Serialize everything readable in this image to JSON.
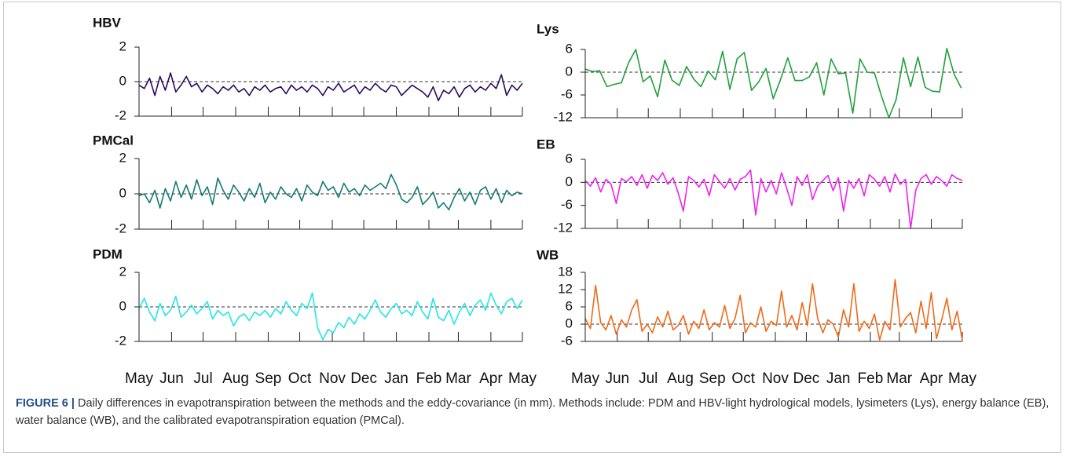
{
  "chart_data": [
    {
      "type": "line",
      "title": "HBV",
      "color": "#2e0a5e",
      "xlim": [
        0,
        365
      ],
      "ylim": [
        -2,
        2
      ],
      "yticks": [
        -2,
        0,
        2
      ],
      "hline": 0,
      "xticks": [
        0,
        31,
        61,
        92,
        123,
        153,
        184,
        214,
        245,
        276,
        304,
        335,
        365
      ],
      "x": [
        0,
        5,
        10,
        15,
        20,
        25,
        30,
        35,
        40,
        45,
        50,
        55,
        60,
        65,
        70,
        75,
        80,
        85,
        90,
        95,
        100,
        105,
        110,
        115,
        120,
        125,
        130,
        135,
        140,
        145,
        150,
        155,
        160,
        165,
        170,
        175,
        180,
        185,
        190,
        195,
        200,
        205,
        210,
        215,
        220,
        225,
        230,
        235,
        240,
        245,
        250,
        255,
        260,
        265,
        270,
        275,
        280,
        285,
        290,
        295,
        300,
        305,
        310,
        315,
        320,
        325,
        330,
        335,
        340,
        345,
        350,
        355,
        360,
        365
      ],
      "values": [
        -0.2,
        -0.4,
        0.2,
        -0.8,
        0.3,
        -0.5,
        0.5,
        -0.6,
        -0.2,
        0.3,
        -0.3,
        -0.1,
        -0.6,
        -0.2,
        -0.4,
        -0.7,
        -0.3,
        -0.5,
        -0.2,
        -0.6,
        -0.4,
        -0.8,
        -0.3,
        -0.5,
        -0.2,
        -0.6,
        -0.4,
        -0.3,
        -0.7,
        -0.2,
        -0.5,
        -0.3,
        -0.6,
        -0.2,
        -0.4,
        -0.8,
        -0.3,
        -0.5,
        -0.1,
        -0.6,
        -0.4,
        -0.2,
        -0.7,
        -0.3,
        -0.5,
        -0.1,
        -0.4,
        -0.6,
        -0.2,
        -0.3,
        -0.8,
        -0.5,
        -0.2,
        -0.4,
        -0.6,
        -0.9,
        -0.3,
        -1.1,
        -0.5,
        -0.7,
        -0.3,
        -0.9,
        -0.4,
        -0.2,
        -0.6,
        -0.3,
        -0.5,
        -0.1,
        -0.4,
        0.4,
        -0.8,
        -0.2,
        -0.5,
        -0.1
      ]
    },
    {
      "type": "line",
      "title": "PMCal",
      "color": "#127a76",
      "xlim": [
        0,
        365
      ],
      "ylim": [
        -2,
        2
      ],
      "yticks": [
        -2,
        0,
        2
      ],
      "hline": 0,
      "xticks": [
        0,
        31,
        61,
        92,
        123,
        153,
        184,
        214,
        245,
        276,
        304,
        335,
        365
      ],
      "x": [
        0,
        5,
        10,
        15,
        20,
        25,
        30,
        35,
        40,
        45,
        50,
        55,
        60,
        65,
        70,
        75,
        80,
        85,
        90,
        95,
        100,
        105,
        110,
        115,
        120,
        125,
        130,
        135,
        140,
        145,
        150,
        155,
        160,
        165,
        170,
        175,
        180,
        185,
        190,
        195,
        200,
        205,
        210,
        215,
        220,
        225,
        230,
        235,
        240,
        245,
        250,
        255,
        260,
        265,
        270,
        275,
        280,
        285,
        290,
        295,
        300,
        305,
        310,
        315,
        320,
        325,
        330,
        335,
        340,
        345,
        350,
        355,
        360,
        365
      ],
      "values": [
        -0.1,
        0.0,
        -0.5,
        0.2,
        -0.8,
        0.3,
        -0.4,
        0.7,
        -0.2,
        0.5,
        -0.3,
        0.8,
        -0.1,
        0.4,
        -0.6,
        0.9,
        0.2,
        -0.3,
        0.5,
        0.1,
        -0.4,
        0.3,
        -0.2,
        0.6,
        -0.5,
        0.1,
        -0.3,
        0.4,
        0.0,
        -0.2,
        0.3,
        -0.4,
        0.5,
        0.1,
        -0.1,
        0.7,
        0.2,
        0.4,
        -0.2,
        0.6,
        0.1,
        0.3,
        -0.1,
        0.5,
        0.2,
        0.4,
        0.6,
        0.3,
        1.1,
        0.5,
        -0.3,
        -0.5,
        -0.2,
        0.4,
        -0.6,
        -0.3,
        0.1,
        -0.8,
        -0.5,
        -0.9,
        -0.2,
        0.3,
        -0.4,
        0.1,
        -0.6,
        0.2,
        0.4,
        -0.3,
        0.3,
        -0.5,
        0.2,
        -0.1,
        0.1,
        0.0
      ]
    },
    {
      "type": "line",
      "title": "PDM",
      "color": "#22e6e6",
      "xlim": [
        0,
        365
      ],
      "ylim": [
        -2,
        2
      ],
      "yticks": [
        -2,
        0,
        2
      ],
      "hline": 0,
      "xticks": [
        {
          "value": 0,
          "label": "May"
        },
        {
          "value": 31,
          "label": "Jun"
        },
        {
          "value": 61,
          "label": "Jul"
        },
        {
          "value": 92,
          "label": "Aug"
        },
        {
          "value": 123,
          "label": "Sep"
        },
        {
          "value": 153,
          "label": "Oct"
        },
        {
          "value": 184,
          "label": "Nov"
        },
        {
          "value": 214,
          "label": "Dec"
        },
        {
          "value": 245,
          "label": "Jan"
        },
        {
          "value": 276,
          "label": "Feb"
        },
        {
          "value": 304,
          "label": "Mar"
        },
        {
          "value": 335,
          "label": "Apr"
        },
        {
          "value": 365,
          "label": "May"
        }
      ],
      "x": [
        0,
        5,
        10,
        15,
        20,
        25,
        30,
        35,
        40,
        45,
        50,
        55,
        60,
        65,
        70,
        75,
        80,
        85,
        90,
        95,
        100,
        105,
        110,
        115,
        120,
        125,
        130,
        135,
        140,
        145,
        150,
        155,
        160,
        165,
        170,
        175,
        180,
        185,
        190,
        195,
        200,
        205,
        210,
        215,
        220,
        225,
        230,
        235,
        240,
        245,
        250,
        255,
        260,
        265,
        270,
        275,
        280,
        285,
        290,
        295,
        300,
        305,
        310,
        315,
        320,
        325,
        330,
        335,
        340,
        345,
        350,
        355,
        360,
        365
      ],
      "values": [
        -0.1,
        0.5,
        -0.3,
        -0.8,
        0.2,
        -0.5,
        -0.2,
        0.6,
        -0.6,
        -0.3,
        0.1,
        -0.4,
        -0.1,
        0.3,
        -0.7,
        -0.2,
        -0.5,
        -0.3,
        -1.1,
        -0.6,
        -0.4,
        -0.8,
        -0.3,
        -0.5,
        -0.2,
        -0.6,
        -0.1,
        -0.4,
        0.3,
        -0.2,
        -0.5,
        0.2,
        -0.1,
        0.8,
        -1.2,
        -1.9,
        -1.3,
        -1.5,
        -0.9,
        -1.2,
        -0.6,
        -1.0,
        -0.4,
        -0.7,
        -0.2,
        0.4,
        -0.3,
        -0.6,
        -0.1,
        0.2,
        -0.4,
        -0.2,
        -0.5,
        0.3,
        -0.3,
        -0.7,
        0.5,
        -0.6,
        -0.8,
        -0.2,
        -1.0,
        -0.3,
        0.2,
        -0.5,
        0.1,
        0.4,
        -0.2,
        0.8,
        0.1,
        -0.4,
        0.3,
        0.5,
        -0.1,
        0.4
      ]
    },
    {
      "type": "line",
      "title": "Lys",
      "color": "#22a03c",
      "xlim": [
        0,
        365
      ],
      "ylim": [
        -12,
        6
      ],
      "yticks": [
        -12,
        -6,
        0,
        6
      ],
      "hline": 0,
      "xticks": [
        0,
        31,
        61,
        92,
        123,
        153,
        184,
        214,
        245,
        276,
        304,
        335,
        365
      ],
      "x": [
        0,
        7,
        14,
        21,
        28,
        35,
        42,
        49,
        56,
        63,
        70,
        77,
        84,
        91,
        98,
        105,
        112,
        119,
        126,
        133,
        140,
        147,
        154,
        161,
        168,
        175,
        182,
        189,
        196,
        203,
        210,
        217,
        224,
        231,
        238,
        245,
        252,
        259,
        266,
        273,
        280,
        287,
        294,
        301,
        308,
        315,
        322,
        329,
        336,
        343,
        350,
        357,
        364
      ],
      "values": [
        0.8,
        0.2,
        0.4,
        -3.8,
        -3.2,
        -2.8,
        2.5,
        6.0,
        -2.5,
        -1.0,
        -6.5,
        3.2,
        -2.1,
        -3.5,
        1.5,
        -1.8,
        -3.8,
        0.3,
        -2.0,
        5.5,
        -4.5,
        3.5,
        5.2,
        -4.8,
        -2.5,
        1.0,
        -7.0,
        -2.0,
        3.8,
        -2.2,
        -2.2,
        -1.2,
        2.5,
        -6.0,
        3.5,
        -0.4,
        -0.2,
        -10.8,
        3.5,
        0.0,
        -0.2,
        -6.5,
        -12.0,
        -7.2,
        3.8,
        -3.8,
        4.0,
        -4.0,
        -5.0,
        -5.2,
        6.3,
        -0.5,
        -4.2
      ]
    },
    {
      "type": "line",
      "title": "EB",
      "color": "#ee22ee",
      "xlim": [
        0,
        365
      ],
      "ylim": [
        -12,
        6
      ],
      "yticks": [
        -12,
        -6,
        0,
        6
      ],
      "hline": 0,
      "xticks": [
        0,
        31,
        61,
        92,
        123,
        153,
        184,
        214,
        245,
        276,
        304,
        335,
        365
      ],
      "x": [
        0,
        5,
        10,
        15,
        20,
        25,
        30,
        35,
        40,
        45,
        50,
        55,
        60,
        65,
        70,
        75,
        80,
        85,
        90,
        95,
        100,
        105,
        110,
        115,
        120,
        125,
        130,
        135,
        140,
        145,
        150,
        155,
        160,
        165,
        170,
        175,
        180,
        185,
        190,
        195,
        200,
        205,
        210,
        215,
        220,
        225,
        230,
        235,
        240,
        245,
        250,
        255,
        260,
        265,
        270,
        275,
        280,
        285,
        290,
        295,
        300,
        305,
        310,
        315,
        320,
        325,
        330,
        335,
        340,
        345,
        350,
        355,
        360,
        365
      ],
      "values": [
        0.5,
        -1.0,
        1.2,
        -2.5,
        0.8,
        -0.5,
        -5.5,
        1.0,
        0.2,
        1.5,
        -0.8,
        2.0,
        -1.5,
        1.8,
        0.5,
        2.5,
        -0.5,
        1.2,
        -2.8,
        -7.5,
        1.5,
        0.5,
        -1.2,
        0.8,
        -3.5,
        2.0,
        0.2,
        -1.5,
        1.0,
        -2.0,
        0.8,
        1.5,
        3.2,
        -8.5,
        1.0,
        -2.5,
        0.5,
        -3.0,
        2.5,
        -1.5,
        -6.0,
        1.5,
        -0.8,
        2.0,
        -4.5,
        -1.0,
        0.5,
        1.8,
        -2.2,
        1.2,
        -7.5,
        0.5,
        -1.5,
        1.0,
        -3.5,
        2.0,
        0.8,
        -1.0,
        1.5,
        -2.5,
        2.2,
        -0.5,
        0.8,
        -12.0,
        -2.0,
        1.0,
        2.0,
        -0.5,
        1.5,
        0.5,
        -1.0,
        2.0,
        1.0,
        0.5
      ]
    },
    {
      "type": "line",
      "title": "WB",
      "color": "#ee6a1a",
      "xlim": [
        0,
        365
      ],
      "ylim": [
        -6,
        18
      ],
      "yticks": [
        -6,
        0,
        6,
        12,
        18
      ],
      "hline": 0,
      "xticks": [
        {
          "value": 0,
          "label": "May"
        },
        {
          "value": 31,
          "label": "Jun"
        },
        {
          "value": 61,
          "label": "Jul"
        },
        {
          "value": 92,
          "label": "Aug"
        },
        {
          "value": 123,
          "label": "Sep"
        },
        {
          "value": 153,
          "label": "Oct"
        },
        {
          "value": 184,
          "label": "Nov"
        },
        {
          "value": 214,
          "label": "Dec"
        },
        {
          "value": 245,
          "label": "Jan"
        },
        {
          "value": 276,
          "label": "Feb"
        },
        {
          "value": 304,
          "label": "Mar"
        },
        {
          "value": 335,
          "label": "Apr"
        },
        {
          "value": 365,
          "label": "May"
        }
      ],
      "x": [
        0,
        5,
        10,
        15,
        20,
        25,
        30,
        35,
        40,
        45,
        50,
        55,
        60,
        65,
        70,
        75,
        80,
        85,
        90,
        95,
        100,
        105,
        110,
        115,
        120,
        125,
        130,
        135,
        140,
        145,
        150,
        155,
        160,
        165,
        170,
        175,
        180,
        185,
        190,
        195,
        200,
        205,
        210,
        215,
        220,
        225,
        230,
        235,
        240,
        245,
        250,
        255,
        260,
        265,
        270,
        275,
        280,
        285,
        290,
        295,
        300,
        305,
        310,
        315,
        320,
        325,
        330,
        335,
        340,
        345,
        350,
        355,
        360,
        365
      ],
      "values": [
        2.0,
        -1.5,
        13.5,
        0.5,
        -2.0,
        3.0,
        -3.5,
        1.5,
        -1.0,
        5.0,
        8.5,
        -2.5,
        0.0,
        -3.0,
        2.5,
        -1.0,
        4.5,
        -2.0,
        -0.5,
        3.0,
        -3.5,
        1.0,
        -1.5,
        5.0,
        -2.0,
        0.5,
        -1.0,
        6.5,
        -1.5,
        2.0,
        10.0,
        -3.0,
        0.5,
        -1.0,
        6.0,
        -2.5,
        1.0,
        -0.5,
        11.5,
        -1.0,
        3.0,
        -2.0,
        7.5,
        -0.5,
        14.0,
        2.0,
        -3.0,
        1.5,
        0.0,
        -4.5,
        5.0,
        -1.0,
        14.0,
        -2.5,
        1.0,
        -1.5,
        3.5,
        -5.5,
        1.0,
        -2.0,
        15.5,
        -1.0,
        2.0,
        4.0,
        -3.0,
        8.0,
        -1.5,
        11.0,
        -5.0,
        1.5,
        9.0,
        -2.0,
        4.5,
        -5.5
      ]
    }
  ],
  "caption": {
    "label": "FIGURE 6 |",
    "text": "Daily differences in evapotranspiration between the methods and the eddy-covariance (in mm). Methods include: PDM and HBV-light hydrological models, lysimeters (Lys), energy balance (EB), water balance (WB), and the calibrated evapotranspiration equation (PMCal)."
  }
}
